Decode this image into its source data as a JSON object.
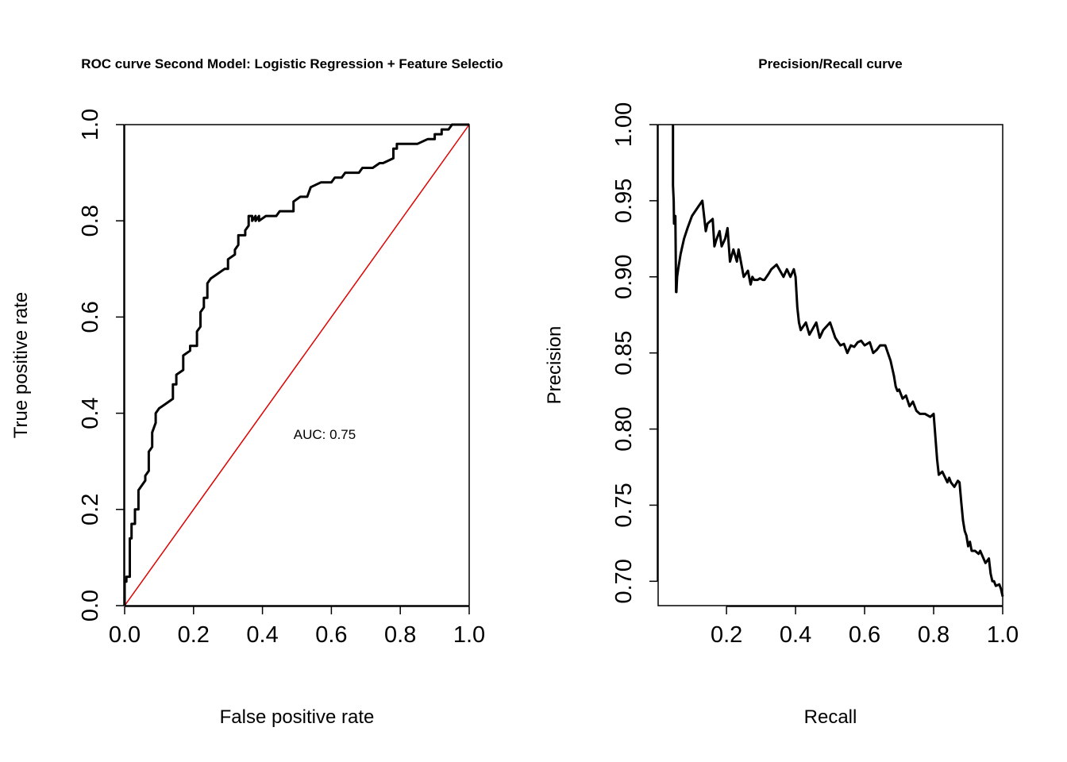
{
  "chart_data": [
    {
      "type": "line",
      "title": "ROC curve Second Model: Logistic Regression + Feature Selectio",
      "xlabel": "False positive rate",
      "ylabel": "True positive rate",
      "xlim": [
        0,
        1
      ],
      "ylim": [
        0,
        1
      ],
      "xticks": [
        "0.0",
        "0.2",
        "0.4",
        "0.6",
        "0.8",
        "1.0"
      ],
      "yticks": [
        "0.0",
        "0.2",
        "0.4",
        "0.6",
        "0.8",
        "1.0"
      ],
      "grid": false,
      "annotation": "AUC: 0.75",
      "reference_line": {
        "color": "#e00000",
        "x": [
          0,
          1
        ],
        "y": [
          0,
          1
        ]
      },
      "series": [
        {
          "color": "#000000",
          "x": [
            0.0,
            0.0,
            0.005,
            0.005,
            0.015,
            0.015,
            0.02,
            0.02,
            0.03,
            0.03,
            0.04,
            0.04,
            0.05,
            0.06,
            0.06,
            0.07,
            0.07,
            0.08,
            0.08,
            0.09,
            0.09,
            0.1,
            0.1,
            0.12,
            0.14,
            0.14,
            0.15,
            0.15,
            0.17,
            0.17,
            0.19,
            0.19,
            0.21,
            0.21,
            0.22,
            0.22,
            0.23,
            0.23,
            0.24,
            0.24,
            0.25,
            0.25,
            0.27,
            0.29,
            0.3,
            0.3,
            0.32,
            0.32,
            0.33,
            0.33,
            0.35,
            0.35,
            0.36,
            0.36,
            0.37,
            0.37,
            0.38,
            0.38,
            0.39,
            0.39,
            0.41,
            0.42,
            0.44,
            0.45,
            0.46,
            0.49,
            0.49,
            0.51,
            0.52,
            0.53,
            0.54,
            0.57,
            0.57,
            0.58,
            0.6,
            0.61,
            0.63,
            0.64,
            0.65,
            0.68,
            0.69,
            0.72,
            0.74,
            0.75,
            0.78,
            0.78,
            0.79,
            0.79,
            0.8,
            0.83,
            0.85,
            0.88,
            0.9,
            0.9,
            0.92,
            0.92,
            0.94,
            0.95,
            0.96,
            0.97,
            0.99,
            1.0
          ],
          "y": [
            0.0,
            0.05,
            0.05,
            0.06,
            0.06,
            0.14,
            0.14,
            0.17,
            0.17,
            0.2,
            0.2,
            0.24,
            0.25,
            0.26,
            0.27,
            0.28,
            0.32,
            0.33,
            0.36,
            0.38,
            0.4,
            0.41,
            0.41,
            0.42,
            0.43,
            0.46,
            0.46,
            0.48,
            0.49,
            0.52,
            0.53,
            0.54,
            0.54,
            0.57,
            0.58,
            0.61,
            0.62,
            0.64,
            0.64,
            0.67,
            0.68,
            0.68,
            0.69,
            0.7,
            0.7,
            0.72,
            0.73,
            0.74,
            0.75,
            0.77,
            0.77,
            0.78,
            0.79,
            0.81,
            0.81,
            0.8,
            0.81,
            0.8,
            0.81,
            0.8,
            0.81,
            0.81,
            0.81,
            0.82,
            0.82,
            0.82,
            0.84,
            0.85,
            0.85,
            0.85,
            0.87,
            0.88,
            0.88,
            0.88,
            0.88,
            0.89,
            0.89,
            0.9,
            0.9,
            0.9,
            0.91,
            0.91,
            0.92,
            0.92,
            0.93,
            0.95,
            0.95,
            0.96,
            0.96,
            0.96,
            0.96,
            0.97,
            0.97,
            0.98,
            0.98,
            0.99,
            0.99,
            1.0,
            1.0,
            1.0,
            1.0,
            1.0
          ]
        }
      ]
    },
    {
      "type": "line",
      "title": "Precision/Recall curve",
      "xlabel": "Recall",
      "ylabel": "Precision",
      "xlim": [
        0.002,
        1.0
      ],
      "ylim": [
        0.684,
        1.0
      ],
      "xticks": [
        "0.2",
        "0.4",
        "0.6",
        "0.8",
        "1.0"
      ],
      "yticks": [
        "0.70",
        "0.75",
        "0.80",
        "0.85",
        "0.90",
        "0.95",
        "1.00"
      ],
      "grid": false,
      "series": [
        {
          "color": "#000000",
          "x": [
            0.045,
            0.045,
            0.047,
            0.048,
            0.052,
            0.054,
            0.055,
            0.057,
            0.06,
            0.067,
            0.077,
            0.087,
            0.1,
            0.115,
            0.13,
            0.14,
            0.14,
            0.145,
            0.16,
            0.165,
            0.17,
            0.18,
            0.186,
            0.196,
            0.203,
            0.21,
            0.22,
            0.23,
            0.235,
            0.24,
            0.25,
            0.262,
            0.27,
            0.275,
            0.28,
            0.29,
            0.297,
            0.305,
            0.31,
            0.322,
            0.33,
            0.345,
            0.365,
            0.375,
            0.385,
            0.395,
            0.4,
            0.405,
            0.41,
            0.415,
            0.43,
            0.44,
            0.46,
            0.47,
            0.48,
            0.5,
            0.515,
            0.53,
            0.54,
            0.55,
            0.56,
            0.57,
            0.58,
            0.59,
            0.6,
            0.615,
            0.625,
            0.635,
            0.645,
            0.66,
            0.675,
            0.685,
            0.69,
            0.695,
            0.7,
            0.71,
            0.72,
            0.73,
            0.74,
            0.75,
            0.76,
            0.775,
            0.79,
            0.8,
            0.805,
            0.81,
            0.815,
            0.825,
            0.84,
            0.845,
            0.85,
            0.86,
            0.87,
            0.875,
            0.88,
            0.885,
            0.89,
            0.895,
            0.9,
            0.905,
            0.91,
            0.92,
            0.93,
            0.935,
            0.95,
            0.96,
            0.965,
            0.97,
            0.975,
            0.98,
            0.99,
            0.995,
            1.0
          ],
          "y": [
            1.0,
            0.96,
            0.95,
            0.935,
            0.94,
            0.89,
            0.89,
            0.9,
            0.905,
            0.915,
            0.925,
            0.932,
            0.94,
            0.945,
            0.95,
            0.93,
            0.93,
            0.935,
            0.938,
            0.92,
            0.924,
            0.93,
            0.92,
            0.925,
            0.932,
            0.91,
            0.918,
            0.91,
            0.918,
            0.912,
            0.9,
            0.904,
            0.895,
            0.9,
            0.898,
            0.898,
            0.899,
            0.898,
            0.898,
            0.902,
            0.905,
            0.908,
            0.9,
            0.905,
            0.9,
            0.905,
            0.9,
            0.88,
            0.87,
            0.865,
            0.87,
            0.862,
            0.87,
            0.86,
            0.865,
            0.87,
            0.86,
            0.855,
            0.856,
            0.85,
            0.855,
            0.854,
            0.857,
            0.858,
            0.855,
            0.857,
            0.85,
            0.852,
            0.855,
            0.855,
            0.845,
            0.835,
            0.828,
            0.825,
            0.826,
            0.82,
            0.822,
            0.815,
            0.818,
            0.812,
            0.81,
            0.81,
            0.808,
            0.81,
            0.795,
            0.78,
            0.77,
            0.772,
            0.765,
            0.768,
            0.765,
            0.762,
            0.766,
            0.765,
            0.752,
            0.74,
            0.733,
            0.73,
            0.723,
            0.726,
            0.72,
            0.72,
            0.718,
            0.72,
            0.712,
            0.715,
            0.705,
            0.7,
            0.7,
            0.697,
            0.698,
            0.695,
            0.69
          ]
        }
      ]
    }
  ]
}
